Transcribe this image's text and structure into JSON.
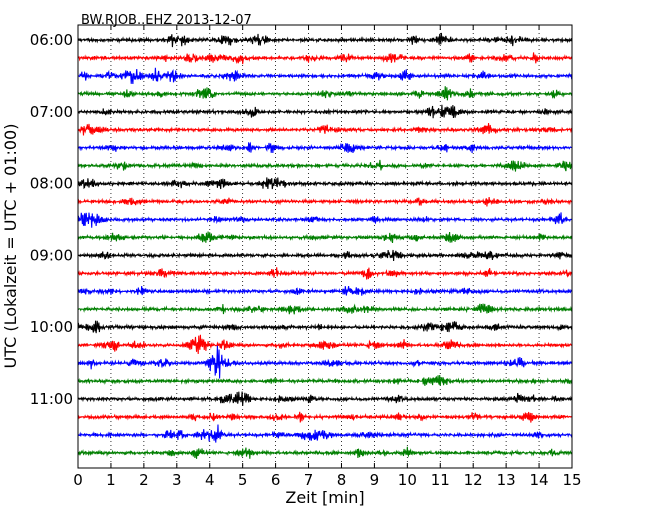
{
  "chart_data": {
    "type": "line",
    "title": "BW.RJOB..EHZ 2013-12-07",
    "xlabel": "Zeit  [min]",
    "ylabel": "UTC (Lokalzeit = UTC + 01:00)",
    "xlim": [
      0,
      15
    ],
    "x_ticks": [
      0,
      1,
      2,
      3,
      4,
      5,
      6,
      7,
      8,
      9,
      10,
      11,
      12,
      13,
      14,
      15
    ],
    "x_tick_labels": [
      "0",
      "1",
      "2",
      "3",
      "4",
      "5",
      "6",
      "7",
      "8",
      "9",
      "10",
      "11",
      "12",
      "13",
      "14",
      "15"
    ],
    "y_tick_labels": [
      "06:00",
      "07:00",
      "08:00",
      "09:00",
      "10:00",
      "11:00"
    ],
    "y_tick_rows": [
      0,
      4,
      8,
      12,
      16,
      20
    ],
    "trace_count": 24,
    "trace_interval_minutes": 15,
    "trace_colors": [
      "#000000",
      "#ff0000",
      "#0000ff",
      "#007f00"
    ],
    "grid": "vertical-dotted",
    "legend": "none"
  }
}
